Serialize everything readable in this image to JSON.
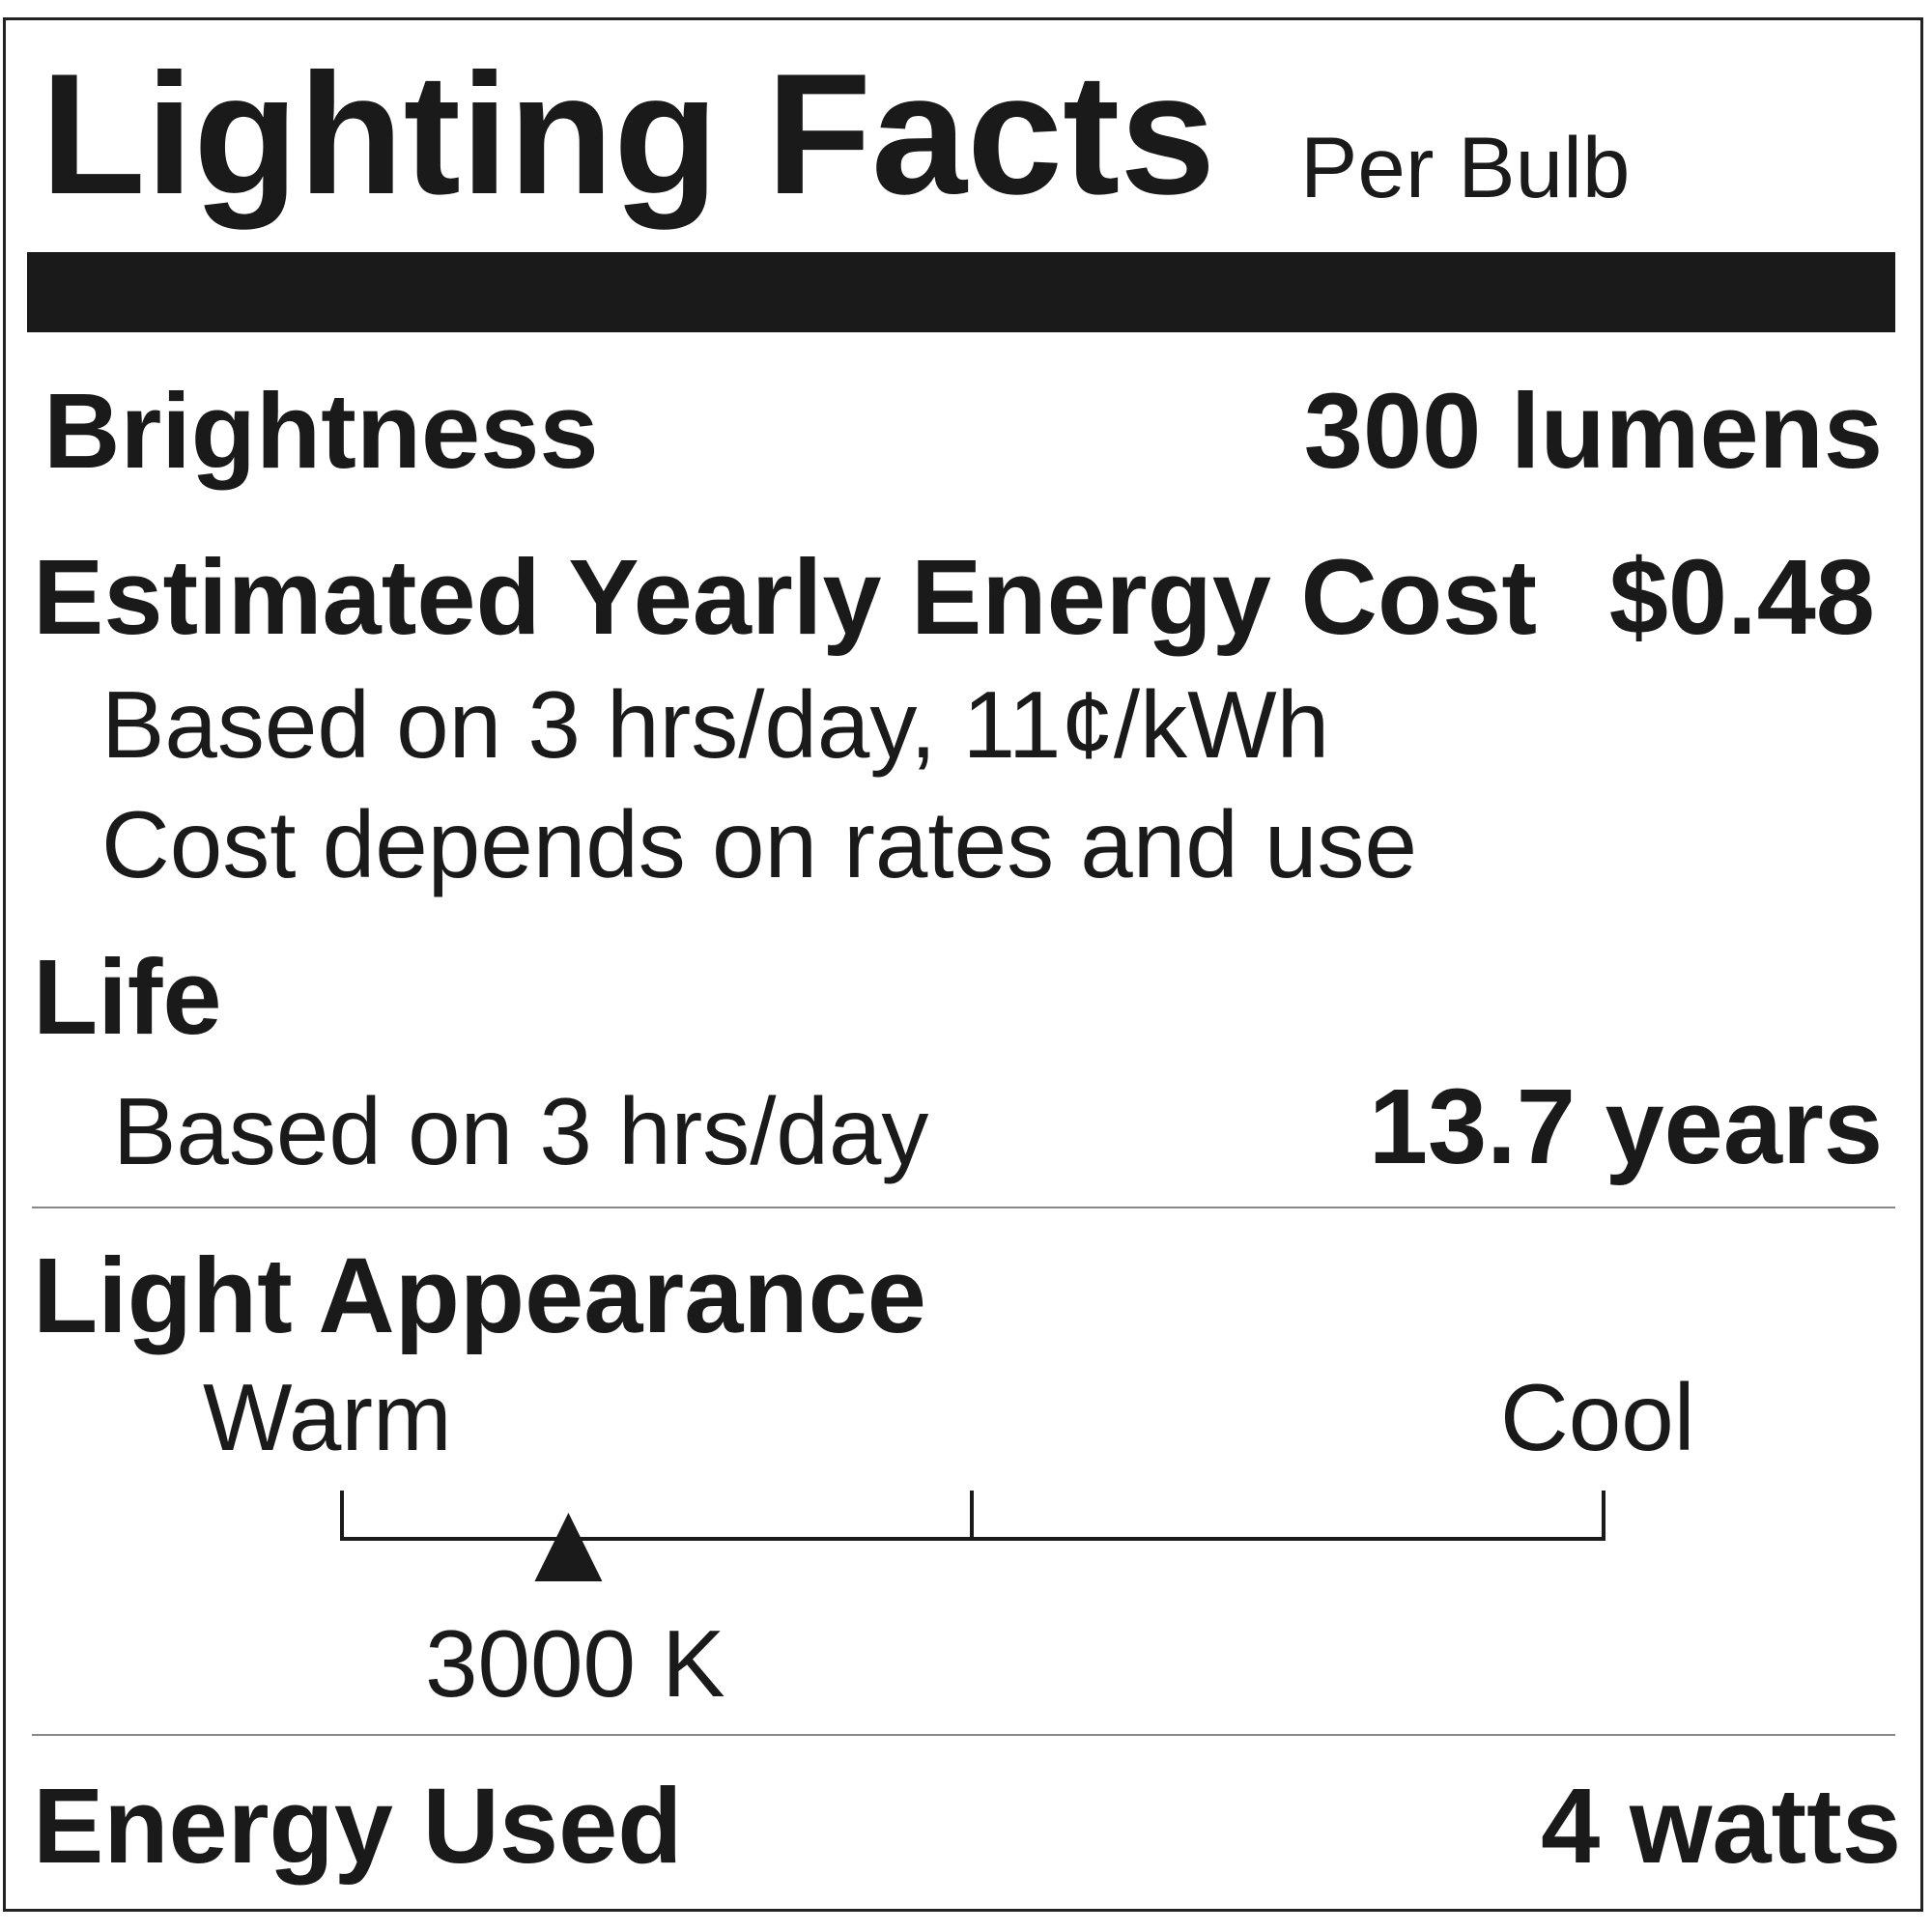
{
  "header": {
    "title": "Lighting Facts",
    "subtitle": "Per Bulb"
  },
  "brightness": {
    "label": "Brightness",
    "value": "300 lumens"
  },
  "energy_cost": {
    "label": "Estimated Yearly Energy Cost",
    "value": "$0.48",
    "note1": "Based on 3 hrs/day, 11¢/kWh",
    "note2": "Cost depends on rates and use"
  },
  "life": {
    "label": "Life",
    "note": "Based on 3 hrs/day",
    "value": "13.7 years"
  },
  "light_appearance": {
    "label": "Light Appearance",
    "warm_label": "Warm",
    "cool_label": "Cool",
    "value": "3000 K",
    "marker_position": 0.18
  },
  "energy_used": {
    "label": "Energy Used",
    "value": "4 watts"
  },
  "colors": {
    "ink": "#1a1a1a",
    "background": "#ffffff"
  }
}
